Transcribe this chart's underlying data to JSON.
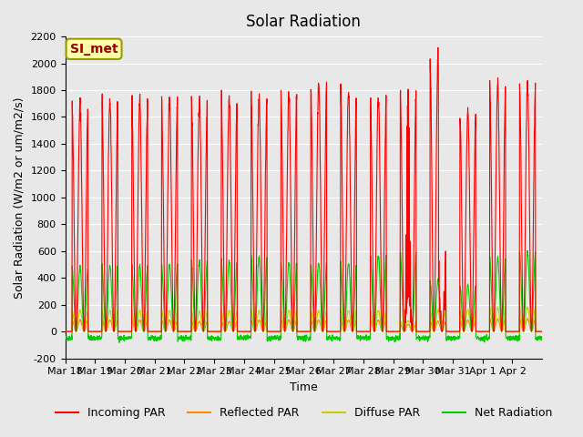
{
  "title": "Solar Radiation",
  "xlabel": "Time",
  "ylabel": "Solar Radiation (W/m2 or um/m2/s)",
  "ylim": [
    -200,
    2200
  ],
  "yticks": [
    -200,
    0,
    200,
    400,
    600,
    800,
    1000,
    1200,
    1400,
    1600,
    1800,
    2000,
    2200
  ],
  "x_labels": [
    "Mar 18",
    "Mar 19",
    "Mar 20",
    "Mar 21",
    "Mar 22",
    "Mar 23",
    "Mar 24",
    "Mar 25",
    "Mar 26",
    "Mar 27",
    "Mar 28",
    "Mar 29",
    "Mar 30",
    "Mar 31",
    "Apr 1",
    "Apr 2"
  ],
  "annotation_text": "SI_met",
  "annotation_color": "#990000",
  "annotation_bg": "#FFFFAA",
  "annotation_border": "#999900",
  "line_colors": {
    "incoming": "#FF0000",
    "reflected": "#FF8800",
    "diffuse": "#CCCC00",
    "net": "#00CC00"
  },
  "legend_labels": [
    "Incoming PAR",
    "Reflected PAR",
    "Diffuse PAR",
    "Net Radiation"
  ],
  "background_color": "#E8E8E8",
  "grid_color": "#FFFFFF",
  "n_days": 16,
  "points_per_day": 144,
  "incoming_peaks": [
    1700,
    1720,
    1730,
    1740,
    1740,
    1750,
    1760,
    1770,
    1850,
    1800,
    1760,
    1800,
    2040,
    1650,
    1850,
    1850
  ],
  "net_peaks": [
    480,
    490,
    490,
    500,
    530,
    530,
    560,
    510,
    510,
    510,
    570,
    590,
    380,
    350,
    550,
    595
  ],
  "reflected_peaks": [
    90,
    90,
    90,
    90,
    80,
    80,
    90,
    90,
    90,
    90,
    90,
    55,
    80,
    90,
    100,
    100
  ],
  "diffuse_peaks": [
    175,
    175,
    175,
    175,
    170,
    175,
    175,
    175,
    175,
    175,
    175,
    90,
    175,
    180,
    200,
    200
  ]
}
